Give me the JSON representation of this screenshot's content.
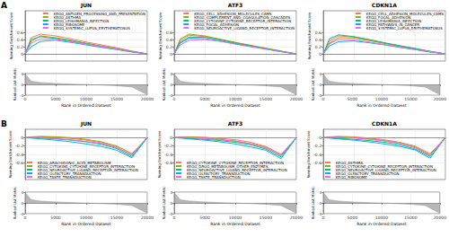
{
  "chart_data": [
    {
      "type": "line",
      "panel_label": "A",
      "title": "JUN",
      "legend": "top right",
      "grid": true,
      "xlabel": "Rank in Ordered Dataset",
      "ylabel": "Running Enrichment Score",
      "x": [
        0,
        1000,
        2500,
        5000,
        7500,
        10000,
        12500,
        15000,
        17500,
        20000
      ],
      "xlim": [
        0,
        20000
      ],
      "xticks": [
        0,
        5000,
        10000,
        15000,
        20000
      ],
      "ylim": [
        -0.2,
        1.2
      ],
      "yticks": [
        0,
        0.2,
        0.4,
        0.6
      ],
      "series": [
        {
          "name": "KEGG_ANTIGEN_PROCESSING_AND_PRESENTATION",
          "color": "#F8766D",
          "values": [
            0,
            0.45,
            0.55,
            0.5,
            0.42,
            0.33,
            0.25,
            0.17,
            0.08,
            0
          ]
        },
        {
          "name": "KEGG_ASTHMA",
          "color": "#A3A500",
          "values": [
            0,
            0.35,
            0.5,
            0.45,
            0.38,
            0.3,
            0.22,
            0.15,
            0.07,
            0
          ]
        },
        {
          "name": "KEGG_LEISHMANIA_INFECTION",
          "color": "#00BF7D",
          "values": [
            0,
            0.4,
            0.48,
            0.43,
            0.36,
            0.28,
            0.2,
            0.13,
            0.06,
            0
          ]
        },
        {
          "name": "KEGG_RIBOSOME",
          "color": "#00B0F6",
          "values": [
            0,
            0.2,
            0.35,
            0.38,
            0.32,
            0.25,
            0.18,
            0.12,
            0.05,
            0
          ]
        },
        {
          "name": "KEGG_SYSTEMIC_LUPUS_ERYTHEMATOSUS",
          "color": "#E76BF3",
          "values": [
            0,
            0.3,
            0.42,
            0.4,
            0.34,
            0.27,
            0.2,
            0.13,
            0.06,
            0
          ]
        }
      ],
      "metric": {
        "type": "area",
        "ylabel": "Ranked List Metric",
        "color": "#999999",
        "ylim": [
          -4,
          4
        ],
        "yticks": [
          -4,
          0,
          4
        ],
        "values": [
          3.8,
          1.2,
          0.7,
          0.35,
          0.12,
          -0.05,
          -0.25,
          -0.5,
          -1.0,
          -3.8
        ]
      }
    },
    {
      "type": "line",
      "title": "ATF3",
      "legend": "top right",
      "grid": true,
      "xlabel": "Rank in Ordered Dataset",
      "ylabel": "Running Enrichment Score",
      "x": [
        0,
        1000,
        2500,
        5000,
        7500,
        10000,
        12500,
        15000,
        17500,
        20000
      ],
      "xlim": [
        0,
        20000
      ],
      "xticks": [
        0,
        5000,
        10000,
        15000,
        20000
      ],
      "ylim": [
        -0.2,
        1.2
      ],
      "yticks": [
        0,
        0.2,
        0.4,
        0.6
      ],
      "series": [
        {
          "name": "KEGG_CELL_ADHESION_MOLECULES_CAMS",
          "color": "#F8766D",
          "values": [
            0,
            0.38,
            0.52,
            0.48,
            0.4,
            0.31,
            0.23,
            0.15,
            0.07,
            0
          ]
        },
        {
          "name": "KEGG_COMPLEMENT_AND_COAGULATION_CASCADES",
          "color": "#A3A500",
          "values": [
            0,
            0.42,
            0.55,
            0.5,
            0.41,
            0.32,
            0.24,
            0.16,
            0.08,
            0
          ]
        },
        {
          "name": "KEGG_CYTOKINE_CYTOKINE_RECEPTOR_INTERACTION",
          "color": "#00BF7D",
          "values": [
            0,
            0.33,
            0.47,
            0.46,
            0.39,
            0.3,
            0.22,
            0.14,
            0.07,
            0
          ]
        },
        {
          "name": "KEGG_FOCAL_ADHESION",
          "color": "#00B0F6",
          "values": [
            0,
            0.3,
            0.44,
            0.42,
            0.36,
            0.28,
            0.21,
            0.14,
            0.06,
            0
          ]
        },
        {
          "name": "KEGG_NEUROACTIVE_LIGAND_RECEPTOR_INTERACTION",
          "color": "#E76BF3",
          "values": [
            0,
            0.25,
            0.38,
            0.4,
            0.35,
            0.27,
            0.2,
            0.13,
            0.06,
            0
          ]
        }
      ],
      "metric": {
        "type": "area",
        "ylabel": "Ranked List Metric",
        "color": "#999999",
        "ylim": [
          -4,
          4
        ],
        "yticks": [
          -4,
          0,
          4
        ],
        "values": [
          3.8,
          1.2,
          0.7,
          0.35,
          0.12,
          -0.05,
          -0.25,
          -0.5,
          -1.0,
          -3.8
        ]
      }
    },
    {
      "type": "line",
      "title": "CDKN1A",
      "legend": "top right",
      "grid": true,
      "xlabel": "Rank in Ordered Dataset",
      "ylabel": "Running Enrichment Score",
      "x": [
        0,
        1000,
        2500,
        5000,
        7500,
        10000,
        12500,
        15000,
        17500,
        20000
      ],
      "xlim": [
        0,
        20000
      ],
      "xticks": [
        0,
        5000,
        10000,
        15000,
        20000
      ],
      "ylim": [
        -0.2,
        1.2
      ],
      "yticks": [
        0,
        0.2,
        0.4,
        0.6
      ],
      "series": [
        {
          "name": "KEGG_CELL_ADHESION_MOLECULES_CAMS",
          "color": "#F8766D",
          "values": [
            0,
            0.36,
            0.5,
            0.47,
            0.39,
            0.3,
            0.22,
            0.15,
            0.07,
            0
          ]
        },
        {
          "name": "KEGG_FOCAL_ADHESION",
          "color": "#A3A500",
          "values": [
            0,
            0.3,
            0.45,
            0.44,
            0.37,
            0.29,
            0.21,
            0.14,
            0.06,
            0
          ]
        },
        {
          "name": "KEGG_LEISHMANIA_INFECTION",
          "color": "#00BF7D",
          "values": [
            0,
            0.42,
            0.53,
            0.48,
            0.4,
            0.31,
            0.23,
            0.15,
            0.07,
            0
          ]
        },
        {
          "name": "KEGG_PATHWAYS_IN_CANCER",
          "color": "#00B0F6",
          "values": [
            0,
            0.22,
            0.34,
            0.36,
            0.31,
            0.25,
            0.18,
            0.12,
            0.05,
            0
          ]
        },
        {
          "name": "KEGG_SYSTEMIC_LUPUS_ERYTHEMATOSUS",
          "color": "#E76BF3",
          "values": [
            0,
            0.28,
            0.4,
            0.39,
            0.33,
            0.26,
            0.19,
            0.12,
            0.06,
            0
          ]
        }
      ],
      "metric": {
        "type": "area",
        "ylabel": "Ranked List Metric",
        "color": "#999999",
        "ylim": [
          -4,
          4
        ],
        "yticks": [
          -4,
          0,
          4
        ],
        "values": [
          3.8,
          1.2,
          0.7,
          0.35,
          0.12,
          -0.05,
          -0.25,
          -0.5,
          -1.0,
          -3.8
        ]
      }
    },
    {
      "type": "line",
      "panel_label": "B",
      "title": "JUN",
      "legend": "bottom left",
      "grid": true,
      "xlabel": "Rank in Ordered Dataset",
      "ylabel": "Running Enrichment Score",
      "x": [
        0,
        1000,
        2500,
        5000,
        7500,
        10000,
        12500,
        15000,
        17500,
        20000
      ],
      "xlim": [
        0,
        20000
      ],
      "xticks": [
        0,
        5000,
        10000,
        15000,
        20000
      ],
      "ylim": [
        -1.0,
        0.2
      ],
      "yticks": [
        -0.6,
        -0.4,
        -0.2,
        0
      ],
      "series": [
        {
          "name": "KEGG_ARACHIDONIC_ACID_METABOLISM",
          "color": "#F8766D",
          "values": [
            0,
            0.01,
            0.02,
            0.01,
            -0.02,
            -0.06,
            -0.12,
            -0.22,
            -0.42,
            0
          ]
        },
        {
          "name": "KEGG_CYTOKINE_CYTOKINE_RECEPTOR_INTERACTION",
          "color": "#A3A500",
          "values": [
            0,
            0.02,
            0.03,
            0.02,
            0,
            -0.04,
            -0.1,
            -0.2,
            -0.38,
            0
          ]
        },
        {
          "name": "KEGG_NEUROACTIVE_LIGAND_RECEPTOR_INTERACTION",
          "color": "#00BF7D",
          "values": [
            0,
            0,
            -0.01,
            -0.03,
            -0.06,
            -0.1,
            -0.16,
            -0.26,
            -0.45,
            0
          ]
        },
        {
          "name": "KEGG_OLFACTORY_TRANSDUCTION",
          "color": "#00B0F6",
          "values": [
            0,
            -0.01,
            -0.03,
            -0.06,
            -0.1,
            -0.15,
            -0.21,
            -0.3,
            -0.48,
            0
          ]
        },
        {
          "name": "KEGG_TASTE_TRANSDUCTION",
          "color": "#E76BF3",
          "values": [
            0,
            0.01,
            0,
            -0.02,
            -0.05,
            -0.09,
            -0.14,
            -0.24,
            -0.4,
            0
          ]
        }
      ],
      "metric": {
        "type": "area",
        "ylabel": "Ranked List Metric",
        "color": "#999999",
        "ylim": [
          -4,
          4
        ],
        "yticks": [
          -4,
          0,
          4
        ],
        "values": [
          3.8,
          1.2,
          0.7,
          0.35,
          0.12,
          -0.05,
          -0.25,
          -0.5,
          -1.0,
          -3.8
        ]
      }
    },
    {
      "type": "line",
      "title": "ATF3",
      "legend": "bottom left",
      "grid": true,
      "xlabel": "Rank in Ordered Dataset",
      "ylabel": "Running Enrichment Score",
      "x": [
        0,
        1000,
        2500,
        5000,
        7500,
        10000,
        12500,
        15000,
        17500,
        20000
      ],
      "xlim": [
        0,
        20000
      ],
      "xticks": [
        0,
        5000,
        10000,
        15000,
        20000
      ],
      "ylim": [
        -1.0,
        0.2
      ],
      "yticks": [
        -0.6,
        -0.4,
        -0.2,
        0
      ],
      "series": [
        {
          "name": "KEGG_CYTOKINE_CYTOKINE_RECEPTOR_INTERACTION",
          "color": "#F8766D",
          "values": [
            0,
            0.02,
            0.02,
            0.01,
            -0.02,
            -0.05,
            -0.11,
            -0.21,
            -0.4,
            0
          ]
        },
        {
          "name": "KEGG_DRUG_METABOLISM_OTHER_ENZYMES",
          "color": "#A3A500",
          "values": [
            0,
            0.01,
            0.01,
            -0.01,
            -0.04,
            -0.08,
            -0.14,
            -0.23,
            -0.43,
            0
          ]
        },
        {
          "name": "KEGG_NEUROACTIVE_LIGAND_RECEPTOR_INTERACTION",
          "color": "#00BF7D",
          "values": [
            0,
            0,
            -0.02,
            -0.04,
            -0.07,
            -0.11,
            -0.17,
            -0.27,
            -0.46,
            0
          ]
        },
        {
          "name": "KEGG_OLFACTORY_TRANSDUCTION",
          "color": "#00B0F6",
          "values": [
            0,
            -0.01,
            -0.03,
            -0.06,
            -0.1,
            -0.15,
            -0.22,
            -0.3,
            -0.5,
            0
          ]
        },
        {
          "name": "KEGG_TASTE_TRANSDUCTION",
          "color": "#E76BF3",
          "values": [
            0,
            0.01,
            0,
            -0.02,
            -0.05,
            -0.09,
            -0.15,
            -0.25,
            -0.41,
            0
          ]
        }
      ],
      "metric": {
        "type": "area",
        "ylabel": "Ranked List Metric",
        "color": "#999999",
        "ylim": [
          -4,
          4
        ],
        "yticks": [
          -4,
          0,
          4
        ],
        "values": [
          3.8,
          1.2,
          0.7,
          0.35,
          0.12,
          -0.05,
          -0.25,
          -0.5,
          -1.0,
          -3.8
        ]
      }
    },
    {
      "type": "line",
      "title": "CDKN1A",
      "legend": "bottom left",
      "grid": true,
      "xlabel": "Rank in Ordered Dataset",
      "ylabel": "Running Enrichment Score",
      "x": [
        0,
        1000,
        2500,
        5000,
        7500,
        10000,
        12500,
        15000,
        17500,
        20000
      ],
      "xlim": [
        0,
        20000
      ],
      "xticks": [
        0,
        5000,
        10000,
        15000,
        20000
      ],
      "ylim": [
        -1.0,
        0.2
      ],
      "yticks": [
        -0.6,
        -0.4,
        -0.2,
        0
      ],
      "series": [
        {
          "name": "KEGG_ASTHMA",
          "color": "#F8766D",
          "values": [
            0,
            0.02,
            0.03,
            0.02,
            -0.01,
            -0.05,
            -0.11,
            -0.2,
            -0.38,
            0
          ]
        },
        {
          "name": "KEGG_CYTOKINE_CYTOKINE_RECEPTOR_INTERACTION",
          "color": "#A3A500",
          "values": [
            0,
            0.01,
            0.02,
            0,
            -0.03,
            -0.07,
            -0.13,
            -0.22,
            -0.41,
            0
          ]
        },
        {
          "name": "KEGG_NEUROACTIVE_LIGAND_RECEPTOR_INTERACTION",
          "color": "#00BF7D",
          "values": [
            0,
            0,
            -0.02,
            -0.04,
            -0.07,
            -0.11,
            -0.17,
            -0.27,
            -0.45,
            0
          ]
        },
        {
          "name": "KEGG_OLFACTORY_TRANSDUCTION",
          "color": "#00B0F6",
          "values": [
            0,
            -0.01,
            -0.03,
            -0.06,
            -0.1,
            -0.15,
            -0.21,
            -0.29,
            -0.49,
            0
          ]
        },
        {
          "name": "KEGG_RIBOSOME",
          "color": "#E76BF3",
          "values": [
            0,
            0.01,
            0.01,
            -0.01,
            -0.04,
            -0.08,
            -0.14,
            -0.24,
            -0.43,
            0
          ]
        }
      ],
      "metric": {
        "type": "area",
        "ylabel": "Ranked List Metric",
        "color": "#999999",
        "ylim": [
          -4,
          4
        ],
        "yticks": [
          -4,
          0,
          4
        ],
        "values": [
          3.8,
          1.2,
          0.7,
          0.35,
          0.12,
          -0.05,
          -0.25,
          -0.5,
          -1.0,
          -3.8
        ]
      }
    }
  ]
}
